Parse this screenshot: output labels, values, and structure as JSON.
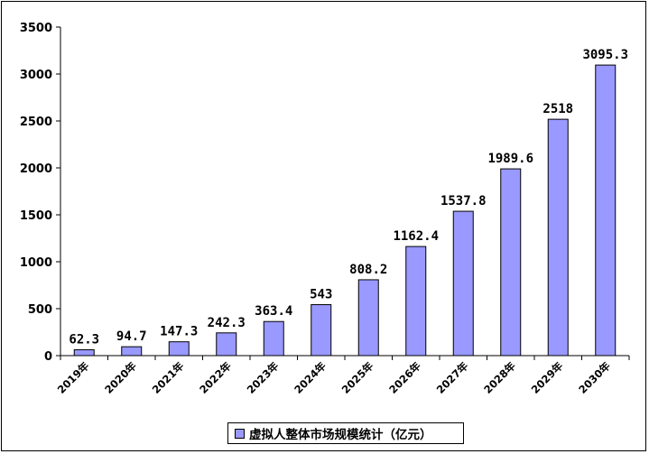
{
  "colors": {
    "bar": "#9999ff",
    "axis": "#000000",
    "background": "#ffffff"
  },
  "chart_data": {
    "type": "bar",
    "title": "",
    "xlabel": "",
    "ylabel": "",
    "categories": [
      "2019年",
      "2020年",
      "2021年",
      "2022年",
      "2023年",
      "2024年",
      "2025年",
      "2026年",
      "2027年",
      "2028年",
      "2029年",
      "2030年"
    ],
    "series": [
      {
        "name": "虚拟人整体市场规模统计（亿元）",
        "values": [
          62.3,
          94.7,
          147.3,
          242.3,
          363.4,
          543,
          808.2,
          1162.4,
          1537.8,
          1989.6,
          2518,
          3095.3
        ],
        "value_labels": [
          "62.3",
          "94.7",
          "147.3",
          "242.3",
          "363.4",
          "543",
          "808.2",
          "1162.4",
          "1537.8",
          "1989.6",
          "2518",
          "3095.3"
        ]
      }
    ],
    "ylim": [
      0,
      3500
    ],
    "y_ticks": [
      "0",
      "500",
      "1000",
      "1500",
      "2000",
      "2500",
      "3000",
      "3500"
    ],
    "grid": false,
    "legend_position": "bottom"
  },
  "legend": {
    "label": "虚拟人整体市场规模统计（亿元）"
  }
}
